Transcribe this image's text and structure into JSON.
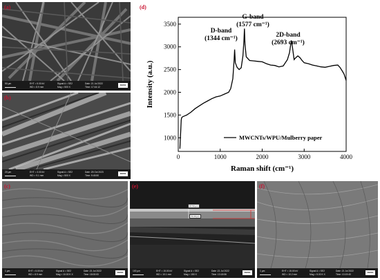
{
  "panels": {
    "a": {
      "label": "(a)",
      "scale": "50 μm",
      "info": [
        "EHT = 5.00 kV",
        "WD = 8.9 mm",
        "Signal A = SE2",
        "Mag = 500 X",
        "Date :21 Jul 2022",
        "Time :17:44:12"
      ]
    },
    "b": {
      "label": "(b)",
      "scale": "20 μm",
      "info": [
        "EHT = 3.00 kV",
        "WD = 9.1 mm",
        "Signal A = SE2",
        "Mag = 500 X",
        "Date :25 Oct 2023",
        "Time :9:45:50"
      ]
    },
    "c": {
      "label": "(c)",
      "scale": "1 μm",
      "info": [
        "EHT = 5.00 kV",
        "WD = 8.9 mm",
        "Signal A = SE2",
        "Mag = 10.00 K X",
        "Date :21 Jul 2022",
        "Time :18:00:00"
      ]
    },
    "e": {
      "label": "(e)",
      "scale": "100 μm",
      "info": [
        "EHT = 15.00 kV",
        "WD = 10.1 mm",
        "Signal A = SE2",
        "Mag = 150 X",
        "Date :21 Jul 2022",
        "Time :13:18:56"
      ],
      "meas1": "67.50 μm",
      "meas2": "72.20 μm"
    },
    "f": {
      "label": "(f)",
      "scale": "1 μm",
      "info": [
        "EHT = 15.00 kV",
        "WD = 10.2 mm",
        "Signal A = SE2",
        "Mag = 5.00 K X",
        "Date :21 Jul 2022",
        "Time :13:19:40"
      ]
    },
    "logo": "ZEISS"
  },
  "chart_data": {
    "label": "(d)",
    "type": "line",
    "xlabel": "Raman shift (cm⁻¹)",
    "ylabel": "Intensity (a.u.)",
    "xlim": [
      0,
      4000
    ],
    "ylim": [
      700,
      3650
    ],
    "xticks": [
      0,
      1000,
      2000,
      3000,
      4000
    ],
    "yticks": [
      1000,
      1500,
      2000,
      2500,
      3000,
      3500
    ],
    "legend": "MWCNTs/WPU/Mulberry paper",
    "legend_position": "bottom-right",
    "annotations": [
      {
        "line1": "D-band",
        "line2": "(1344 cm⁻¹)"
      },
      {
        "line1": "G-band",
        "line2": "(1577 cm⁻¹)"
      },
      {
        "line1": "2D-band",
        "line2": "(2693 cm⁻¹)"
      }
    ],
    "series": [
      {
        "color": "#000000",
        "x": [
          40,
          70,
          80,
          100,
          150,
          200,
          300,
          400,
          500,
          600,
          700,
          800,
          900,
          1000,
          1100,
          1200,
          1250,
          1300,
          1330,
          1344,
          1360,
          1400,
          1450,
          1500,
          1540,
          1565,
          1577,
          1590,
          1620,
          1700,
          1800,
          1900,
          2000,
          2100,
          2200,
          2300,
          2400,
          2500,
          2600,
          2650,
          2693,
          2720,
          2760,
          2800,
          2850,
          2900,
          2950,
          3000,
          3100,
          3200,
          3300,
          3400,
          3500,
          3600,
          3700,
          3800,
          3850,
          3900,
          3950,
          4000
        ],
        "y": [
          760,
          1390,
          1440,
          1460,
          1480,
          1500,
          1560,
          1640,
          1700,
          1760,
          1810,
          1860,
          1900,
          1920,
          1960,
          2000,
          2080,
          2300,
          2700,
          2940,
          2650,
          2550,
          2500,
          2540,
          2800,
          3150,
          3400,
          3050,
          2780,
          2700,
          2690,
          2680,
          2670,
          2630,
          2600,
          2590,
          2560,
          2580,
          2720,
          2870,
          3140,
          3000,
          2720,
          2760,
          2800,
          2760,
          2700,
          2650,
          2630,
          2600,
          2580,
          2560,
          2550,
          2570,
          2590,
          2600,
          2550,
          2480,
          2400,
          2260
        ]
      }
    ]
  }
}
